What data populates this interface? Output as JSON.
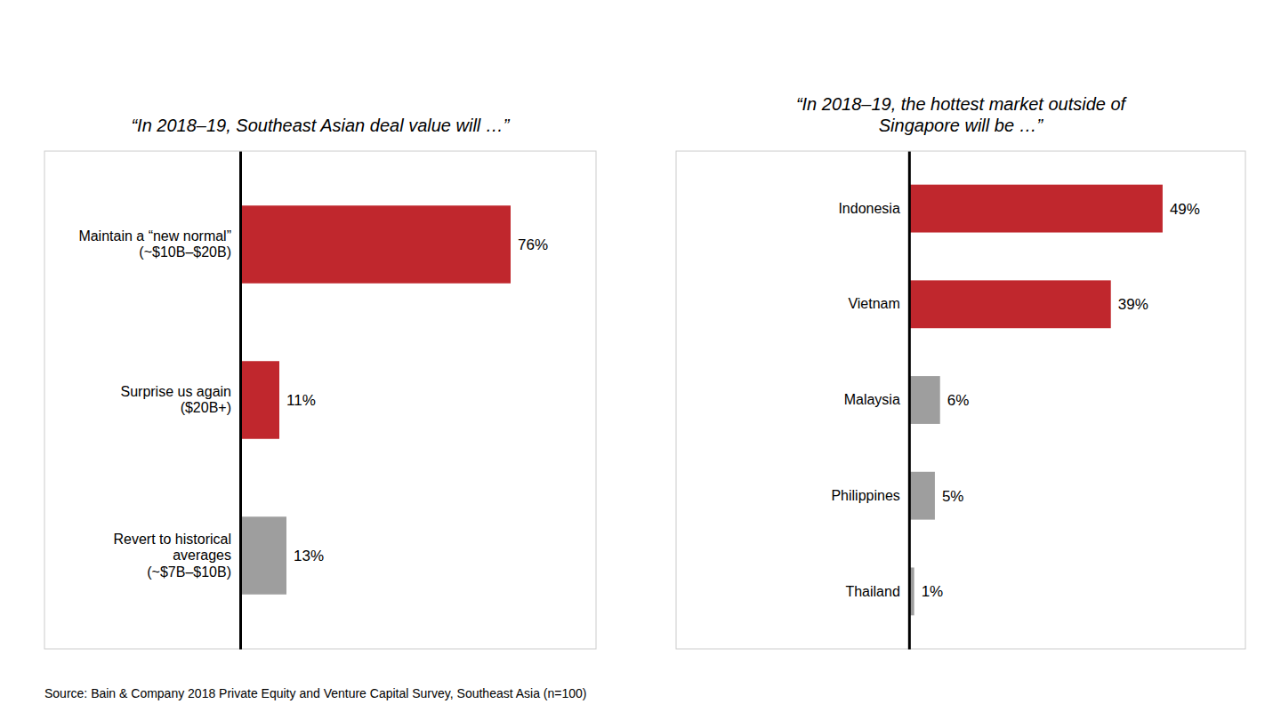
{
  "chart_data": [
    {
      "type": "bar",
      "orientation": "horizontal",
      "title": "“In 2018–19, Southeast Asian deal value will …”",
      "categories": [
        "Maintain a “new normal”\n(~$10B–$20B)",
        "Surprise us again\n($20B+)",
        "Revert to historical\naverages\n(~$7B–$10B)"
      ],
      "values": [
        76,
        11,
        13
      ],
      "value_labels": [
        "76%",
        "11%",
        "13%"
      ],
      "colors": [
        "#c0272d",
        "#c0272d",
        "#9e9e9e"
      ],
      "xlim": [
        -55,
        100
      ],
      "data_labels": true,
      "tick_labels": "y",
      "grid": false,
      "annotations": [
        "Source: Bain & Company 2018 Private Equity and Venture Capital Survey, Southeast Asia (n=100)"
      ]
    },
    {
      "type": "bar",
      "orientation": "horizontal",
      "title": "“In 2018–19, the hottest market outside of\nSingapore will be …”",
      "categories": [
        "Indonesia",
        "Vietnam",
        "Malaysia",
        "Philippines",
        "Thailand"
      ],
      "values": [
        49,
        39,
        6,
        5,
        1
      ],
      "value_labels": [
        "49%",
        "39%",
        "6%",
        "5%",
        "1%"
      ],
      "colors": [
        "#c0272d",
        "#c0272d",
        "#9e9e9e",
        "#9e9e9e",
        "#9e9e9e"
      ],
      "xlim": [
        -45,
        65
      ],
      "data_labels": true,
      "tick_labels": "y",
      "grid": false
    }
  ]
}
